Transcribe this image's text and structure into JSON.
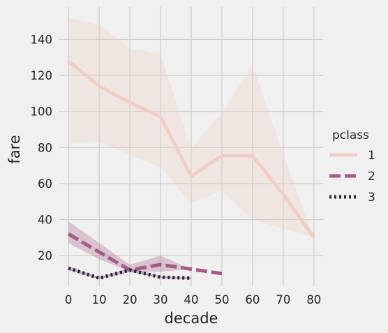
{
  "chart_data": {
    "type": "line",
    "xlabel": "decade",
    "ylabel": "fare",
    "xlim": [
      -3,
      83
    ],
    "ylim": [
      3,
      158
    ],
    "xticks": [
      "0",
      "10",
      "20",
      "30",
      "40",
      "50",
      "60",
      "70",
      "80"
    ],
    "yticks": [
      "20",
      "40",
      "60",
      "80",
      "100",
      "120",
      "140"
    ],
    "grid": true,
    "legend": {
      "title": "pclass",
      "placement": "right"
    },
    "series": [
      {
        "name": "1",
        "color": "#efcfc5",
        "dash": "solid",
        "x": [
          0,
          10,
          20,
          30,
          40,
          50,
          60,
          70,
          80
        ],
        "values": [
          128,
          114,
          105,
          97,
          64,
          75.5,
          75.3,
          54,
          30
        ],
        "ci_lower": [
          82,
          83,
          76,
          69,
          49,
          56,
          40,
          35,
          30
        ],
        "ci_upper": [
          152,
          148,
          135,
          132,
          80,
          99,
          126,
          76,
          30
        ]
      },
      {
        "name": "2",
        "color": "#a45c85",
        "dash": "dashed",
        "x": [
          0,
          10,
          20,
          30,
          40,
          50
        ],
        "values": [
          32,
          22,
          12,
          15,
          12.5,
          10
        ],
        "ci_lower": [
          27,
          18,
          11,
          11,
          12.5,
          10
        ],
        "ci_upper": [
          39,
          27,
          15,
          20,
          12.5,
          10
        ]
      },
      {
        "name": "3",
        "color": "#2e1e3b",
        "dash": "dotted",
        "x": [
          0,
          10,
          20,
          30,
          40
        ],
        "values": [
          13,
          7.5,
          12,
          8,
          7.5
        ],
        "ci_lower": [
          12,
          7,
          11,
          7.5,
          7
        ],
        "ci_upper": [
          14,
          8,
          13,
          8.5,
          8
        ]
      }
    ]
  }
}
